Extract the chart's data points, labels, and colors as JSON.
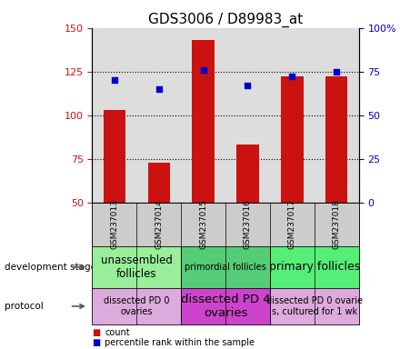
{
  "title": "GDS3006 / D89983_at",
  "samples": [
    "GSM237013",
    "GSM237014",
    "GSM237015",
    "GSM237016",
    "GSM237017",
    "GSM237018"
  ],
  "count_values": [
    103,
    73,
    143,
    83,
    122,
    122
  ],
  "percentile_values": [
    70,
    65,
    76,
    67,
    72,
    75
  ],
  "ylim_left": [
    50,
    150
  ],
  "ylim_right": [
    0,
    100
  ],
  "yticks_left": [
    50,
    75,
    100,
    125,
    150
  ],
  "yticks_right": [
    0,
    25,
    50,
    75,
    100
  ],
  "hlines": [
    75,
    100,
    125
  ],
  "bar_color": "#cc1111",
  "dot_color": "#0000cc",
  "bar_width": 0.5,
  "dev_stage_groups": [
    {
      "label": "unassembled\nfollicles",
      "samples": [
        0,
        1
      ],
      "color": "#99ee99",
      "fontsize": 8.5
    },
    {
      "label": "primordial follicles",
      "samples": [
        2,
        3
      ],
      "color": "#55cc77",
      "fontsize": 7
    },
    {
      "label": "primary follicles",
      "samples": [
        4,
        5
      ],
      "color": "#55ee77",
      "fontsize": 9
    }
  ],
  "protocol_groups": [
    {
      "label": "dissected PD 0\novaries",
      "samples": [
        0,
        1
      ],
      "color": "#ddaadd",
      "fontsize": 7
    },
    {
      "label": "dissected PD 4\novaries",
      "samples": [
        2,
        3
      ],
      "color": "#cc44cc",
      "fontsize": 9.5
    },
    {
      "label": "dissected PD 0 ovarie\ns, cultured for 1 wk",
      "samples": [
        4,
        5
      ],
      "color": "#ddaadd",
      "fontsize": 7
    }
  ],
  "left_ylabel_color": "#cc1111",
  "right_ylabel_color": "#0000cc",
  "background_color": "#ffffff",
  "plot_bg_color": "#dddddd",
  "xtick_bg_color": "#cccccc"
}
